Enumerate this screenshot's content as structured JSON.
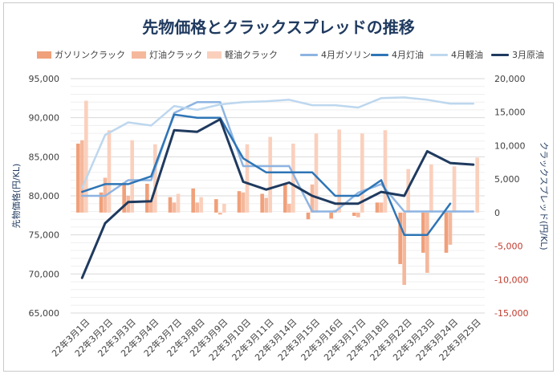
{
  "chart_data": {
    "type": "bar",
    "title": "先物価格とクラックスプレッドの推移",
    "categories": [
      "22年3月1日",
      "22年3月2日",
      "22年3月3日",
      "22年3月4日",
      "22年3月7日",
      "22年3月8日",
      "22年3月9日",
      "22年3月10日",
      "22年3月11日",
      "22年3月14日",
      "22年3月15日",
      "22年3月16日",
      "22年3月17日",
      "22年3月18日",
      "22年3月22日",
      "22年3月23日",
      "22年3月24日",
      "22年3月25日"
    ],
    "y_left": {
      "label": "先物価格(円/KL)",
      "ylim": [
        65000,
        95000
      ],
      "ticks": [
        65000,
        70000,
        75000,
        80000,
        85000,
        90000,
        95000
      ],
      "tick_labels": [
        "65,000",
        "70,000",
        "75,000",
        "80,000",
        "85,000",
        "90,000",
        "95,000"
      ]
    },
    "y_right": {
      "label": "クラックスプレッド(円/KL)",
      "ylim": [
        -15000,
        20000
      ],
      "ticks": [
        -15000,
        -10000,
        -5000,
        0,
        5000,
        10000,
        15000,
        20000
      ],
      "tick_labels": [
        "-15,000",
        "-10,000",
        "-5,000",
        "0",
        "5,000",
        "10,000",
        "15,000",
        "20,000"
      ]
    },
    "grid": true,
    "legend_position": "top",
    "bar_series": [
      {
        "name": "ガソリンクラック",
        "color": "#f0a07a",
        "axis": "right",
        "values": [
          10300,
          3000,
          4500,
          4300,
          2300,
          3600,
          2000,
          3200,
          2800,
          4200,
          -1000,
          -900,
          -500,
          1500,
          -7700,
          -6000,
          -6000,
          null
        ]
      },
      {
        "name": "灯油クラック",
        "color": "#f5b89c",
        "axis": "right",
        "values": [
          10800,
          5200,
          2500,
          1800,
          1500,
          1500,
          -300,
          3000,
          2200,
          1300,
          4200,
          400,
          -700,
          1500,
          -10800,
          -9000,
          -4800,
          null
        ]
      },
      {
        "name": "軽油クラック",
        "color": "#fad0bd",
        "axis": "right",
        "values": [
          16700,
          12300,
          10800,
          10200,
          2800,
          2300,
          1300,
          10200,
          11300,
          10300,
          11800,
          12400,
          11800,
          12300,
          6500,
          7200,
          6900,
          8200
        ]
      }
    ],
    "line_series": [
      {
        "name": "4月ガソリン",
        "color": "#8db4e2",
        "width": 2.5,
        "axis": "left",
        "values": [
          80000,
          80000,
          82000,
          82000,
          90600,
          92000,
          92000,
          83800,
          83800,
          83800,
          78000,
          78000,
          80400,
          81500,
          78000,
          78000,
          78000,
          78000
        ]
      },
      {
        "name": "4月灯油",
        "color": "#2e75b6",
        "width": 2.5,
        "axis": "left",
        "values": [
          80500,
          81500,
          81500,
          82500,
          90400,
          90000,
          90000,
          84800,
          83000,
          83000,
          83000,
          80000,
          80000,
          82000,
          75000,
          75000,
          79000,
          null
        ]
      },
      {
        "name": "4月軽油",
        "color": "#bdd7ee",
        "width": 2.5,
        "axis": "left",
        "values": [
          81000,
          87800,
          89400,
          89000,
          91500,
          91000,
          91700,
          92000,
          92100,
          92300,
          91600,
          91600,
          91300,
          92500,
          92600,
          92300,
          91800,
          91800
        ]
      },
      {
        "name": "3月原油",
        "color": "#1f3a5f",
        "width": 3,
        "axis": "left",
        "values": [
          69500,
          76500,
          79200,
          79300,
          88400,
          88200,
          89800,
          81800,
          80800,
          81700,
          80000,
          79000,
          79000,
          80500,
          80000,
          85700,
          84200,
          84000
        ]
      }
    ]
  }
}
